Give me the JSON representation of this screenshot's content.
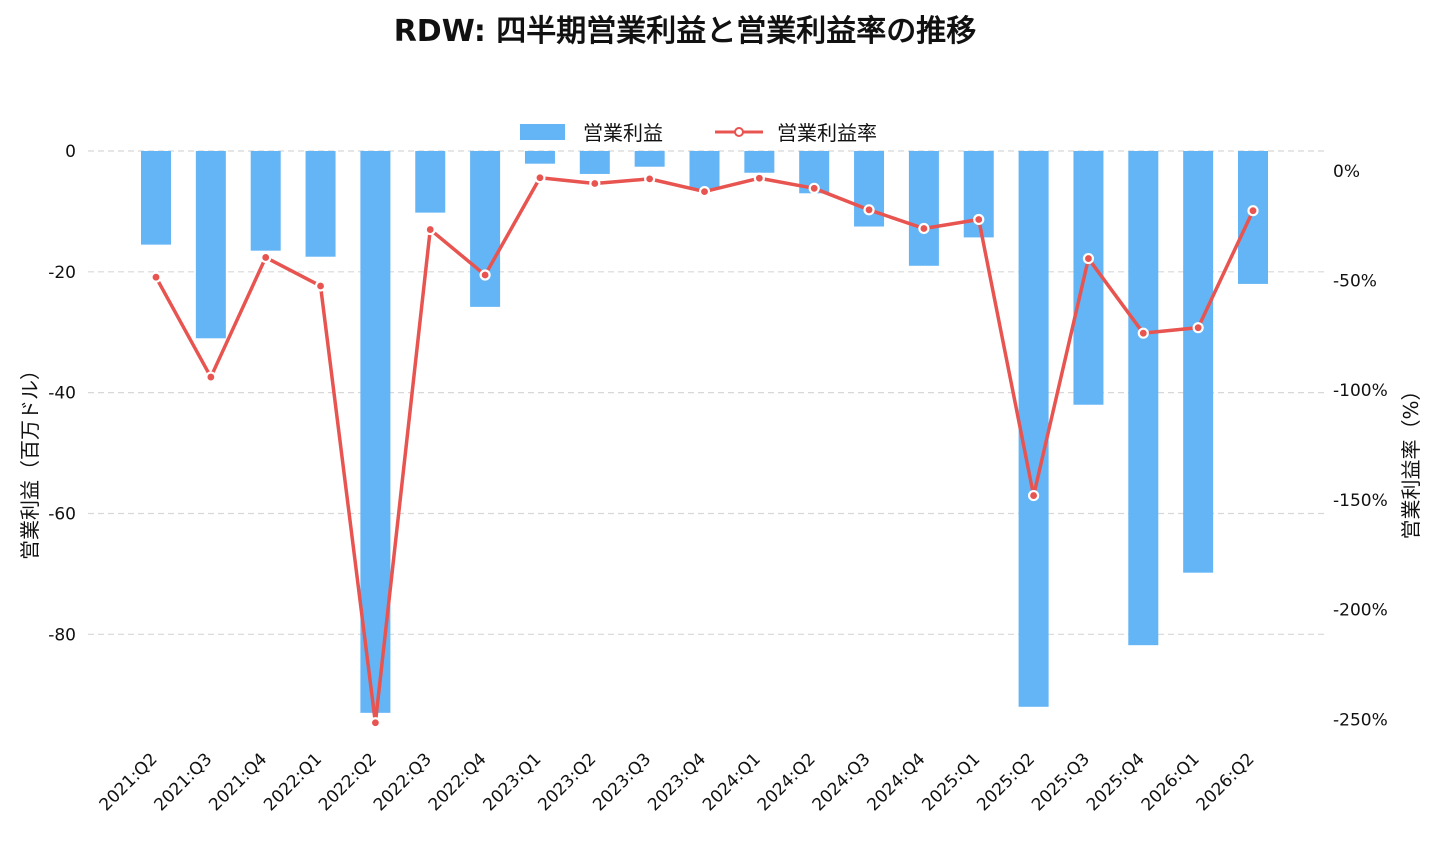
{
  "chart_data": {
    "type": "bar+line",
    "title": "RDW: 四半期営業利益と営業利益率の推移",
    "categories": [
      "2021:Q2",
      "2021:Q3",
      "2021:Q4",
      "2022:Q1",
      "2022:Q2",
      "2022:Q3",
      "2022:Q4",
      "2023:Q1",
      "2023:Q2",
      "2023:Q3",
      "2023:Q4",
      "2024:Q1",
      "2024:Q2",
      "2024:Q3",
      "2024:Q4",
      "2025:Q1",
      "2025:Q2",
      "2025:Q3",
      "2025:Q4",
      "2026:Q1",
      "2026:Q2"
    ],
    "series": [
      {
        "name": "営業利益",
        "type": "bar",
        "axis": "left",
        "color": "#64b5f6",
        "values": [
          -15.5,
          -31.0,
          -16.5,
          -17.5,
          -93.0,
          -10.2,
          -25.8,
          -2.1,
          -3.8,
          -2.6,
          -6.3,
          -3.6,
          -7.0,
          -12.5,
          -19.0,
          -14.3,
          -92.0,
          -42.0,
          -81.8,
          -69.8,
          -22.0
        ]
      },
      {
        "name": "営業利益率",
        "type": "line",
        "axis": "right",
        "color": "#e85450",
        "values": [
          -48.5,
          -94.0,
          -39.5,
          -52.5,
          -251.5,
          -26.8,
          -47.5,
          -3.2,
          -5.8,
          -3.7,
          -9.5,
          -3.4,
          -8.0,
          -17.8,
          -26.3,
          -22.2,
          -148.0,
          -40.0,
          -74.0,
          -71.5,
          -18.2
        ]
      }
    ],
    "left_axis": {
      "label": "営業利益（百万ドル）",
      "ticks": [
        0,
        -20,
        -40,
        -60,
        -80
      ],
      "tick_labels": [
        "0",
        "-20",
        "-40",
        "-60",
        "-80"
      ],
      "range": [
        -97,
        0
      ]
    },
    "right_axis": {
      "label": "営業利益率（%）",
      "ticks": [
        0,
        -50,
        -100,
        -150,
        -200,
        -250
      ],
      "tick_labels": [
        "0%",
        "-50%",
        "-100%",
        "-150%",
        "-200%",
        "-250%"
      ],
      "range": [
        -258,
        9
      ]
    },
    "grid": "horizontal dashed",
    "legend": "top-center"
  }
}
